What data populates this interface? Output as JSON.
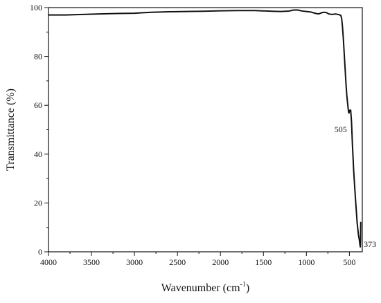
{
  "chart_data": {
    "type": "line",
    "xlabel": "Wavenumber (cm",
    "xlabel_sup": "-1",
    "xlabel_tail": ")",
    "ylabel": "Transmittance (%)",
    "xlim": [
      4000,
      350
    ],
    "ylim": [
      0,
      100
    ],
    "x_reversed": true,
    "grid": false,
    "x_ticks": [
      4000,
      3500,
      3000,
      2500,
      2000,
      1500,
      1000,
      500
    ],
    "y_ticks": [
      0,
      20,
      40,
      60,
      80,
      100
    ],
    "line_color": "#111111",
    "series": [
      {
        "x": [
          4000,
          3800,
          3600,
          3400,
          3200,
          3000,
          2900,
          2800,
          2600,
          2400,
          2200,
          2000,
          1800,
          1600,
          1400,
          1300,
          1200,
          1150,
          1100,
          1050,
          1000,
          950,
          900,
          860,
          830,
          800,
          770,
          740,
          700,
          660,
          620,
          600,
          590,
          580,
          570,
          560,
          550,
          540,
          530,
          520,
          510,
          505,
          495,
          485,
          475,
          465,
          450,
          430,
          410,
          395,
          385,
          378,
          373,
          370,
          369,
          368
        ],
        "y": [
          97.0,
          97.0,
          97.2,
          97.4,
          97.6,
          97.7,
          97.9,
          98.1,
          98.3,
          98.4,
          98.5,
          98.7,
          98.8,
          98.8,
          98.5,
          98.4,
          98.6,
          99.0,
          99.0,
          98.6,
          98.4,
          98.2,
          97.7,
          97.4,
          97.8,
          98.1,
          98.0,
          97.4,
          97.2,
          97.4,
          97.1,
          96.8,
          95.5,
          92.0,
          87.0,
          81.0,
          75.0,
          69.0,
          64.0,
          60.5,
          57.3,
          56.8,
          58.0,
          58.0,
          53.0,
          44.0,
          33.0,
          22.0,
          12.0,
          7.0,
          5.0,
          3.0,
          2.0,
          5.0,
          9.0,
          12.0
        ]
      }
    ],
    "annotations": [
      {
        "label": "505",
        "x": 505,
        "y": 55.3,
        "anchor": "end"
      },
      {
        "label": "373",
        "x": 373,
        "y": 2.0,
        "anchor": "start"
      }
    ]
  }
}
